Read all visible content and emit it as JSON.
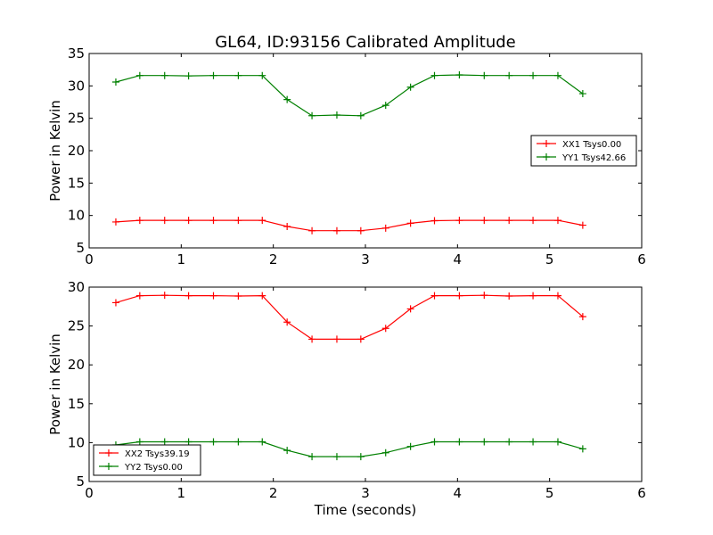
{
  "chart_data": [
    {
      "type": "line",
      "title": "GL64, ID:93156 Calibrated Amplitude",
      "xlabel": "",
      "ylabel": "Power in Kelvin",
      "xlim": [
        0,
        6
      ],
      "ylim": [
        5,
        35
      ],
      "xticks": [
        "0",
        "1",
        "2",
        "3",
        "4",
        "5",
        "6"
      ],
      "yticks": [
        "5",
        "10",
        "15",
        "20",
        "25",
        "30",
        "35"
      ],
      "legend_position": "right",
      "x": [
        0.29,
        0.55,
        0.82,
        1.08,
        1.35,
        1.62,
        1.88,
        2.15,
        2.42,
        2.69,
        2.95,
        3.22,
        3.49,
        3.75,
        4.02,
        4.29,
        4.56,
        4.82,
        5.09,
        5.36
      ],
      "series": [
        {
          "name": "XX1 Tsys0.00",
          "color": "#ff0000",
          "values": [
            9.0,
            9.25,
            9.25,
            9.25,
            9.25,
            9.25,
            9.25,
            8.3,
            7.65,
            7.65,
            7.65,
            8.05,
            8.8,
            9.2,
            9.25,
            9.25,
            9.25,
            9.25,
            9.25,
            8.5
          ]
        },
        {
          "name": "YY1 Tsys42.66",
          "color": "#008000",
          "values": [
            30.6,
            31.6,
            31.6,
            31.55,
            31.6,
            31.6,
            31.6,
            27.9,
            25.4,
            25.5,
            25.4,
            27.0,
            29.8,
            31.6,
            31.7,
            31.6,
            31.6,
            31.6,
            31.6,
            28.8
          ]
        }
      ]
    },
    {
      "type": "line",
      "title": "",
      "xlabel": "Time (seconds)",
      "ylabel": "Power in Kelvin",
      "xlim": [
        0,
        6
      ],
      "ylim": [
        5,
        30
      ],
      "xticks": [
        "0",
        "1",
        "2",
        "3",
        "4",
        "5",
        "6"
      ],
      "yticks": [
        "5",
        "10",
        "15",
        "20",
        "25",
        "30"
      ],
      "legend_position": "lower-left",
      "x": [
        0.29,
        0.55,
        0.82,
        1.08,
        1.35,
        1.62,
        1.88,
        2.15,
        2.42,
        2.69,
        2.95,
        3.22,
        3.49,
        3.75,
        4.02,
        4.29,
        4.56,
        4.82,
        5.09,
        5.36
      ],
      "series": [
        {
          "name": "XX2 Tsys39.19",
          "color": "#ff0000",
          "values": [
            28.0,
            28.9,
            28.95,
            28.9,
            28.9,
            28.85,
            28.9,
            25.5,
            23.3,
            23.3,
            23.3,
            24.7,
            27.2,
            28.9,
            28.9,
            28.95,
            28.85,
            28.9,
            28.9,
            26.2
          ]
        },
        {
          "name": "YY2 Tsys0.00",
          "color": "#008000",
          "values": [
            9.7,
            10.1,
            10.1,
            10.1,
            10.1,
            10.1,
            10.1,
            9.0,
            8.2,
            8.2,
            8.2,
            8.7,
            9.5,
            10.1,
            10.1,
            10.1,
            10.1,
            10.1,
            10.1,
            9.2
          ]
        }
      ]
    }
  ]
}
